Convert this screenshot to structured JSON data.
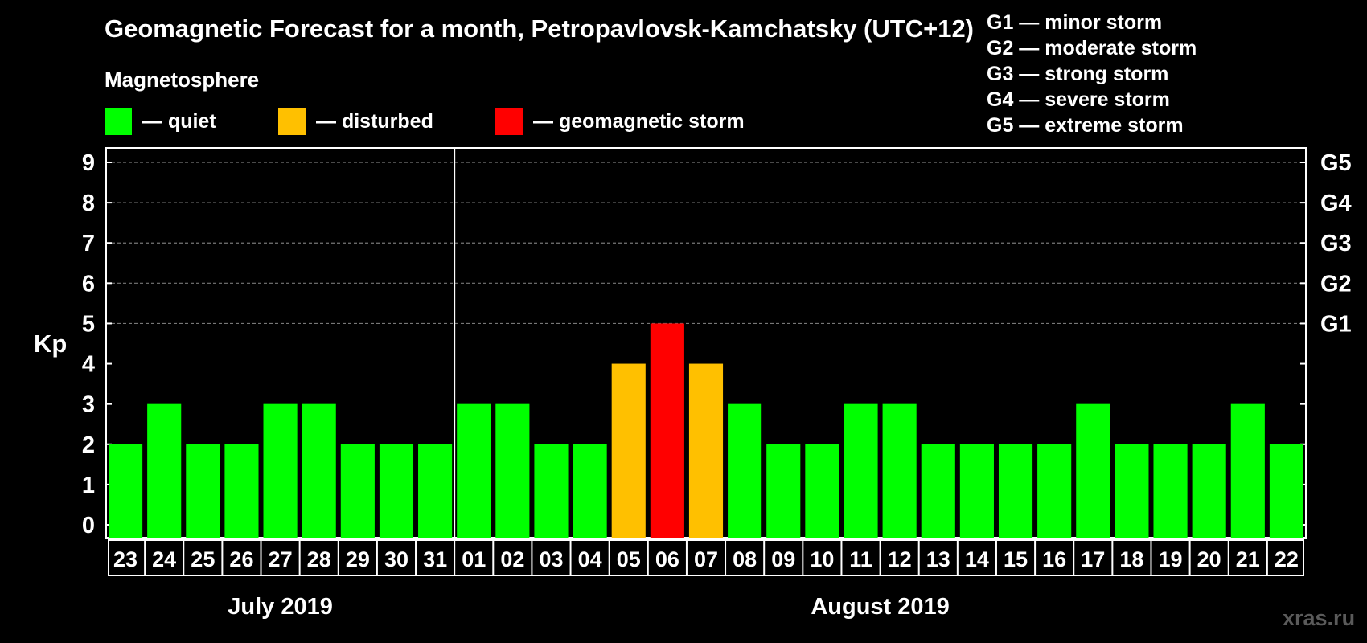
{
  "title": "Geomagnetic Forecast for a month, Petropavlovsk-Kamchatsky (UTC+12)",
  "legend": {
    "heading": "Magnetosphere",
    "items": [
      {
        "label": "— quiet",
        "color": "#00ff00"
      },
      {
        "label": "— disturbed",
        "color": "#ffc000"
      },
      {
        "label": "— geomagnetic storm",
        "color": "#ff0000"
      }
    ]
  },
  "storm_legend": [
    "G1 — minor storm",
    "G2 — moderate storm",
    "G3 — strong storm",
    "G4 — severe storm",
    "G5 — extreme storm"
  ],
  "watermark": "xras.ru",
  "chart_data": {
    "type": "bar",
    "ylabel": "Kp",
    "ylim": [
      0,
      9
    ],
    "yticks": [
      "0",
      "1",
      "2",
      "3",
      "4",
      "5",
      "6",
      "7",
      "8",
      "9"
    ],
    "right_ticks": [
      {
        "value": 5,
        "label": "G1"
      },
      {
        "value": 6,
        "label": "G2"
      },
      {
        "value": 7,
        "label": "G3"
      },
      {
        "value": 8,
        "label": "G4"
      },
      {
        "value": 9,
        "label": "G5"
      }
    ],
    "grid": "horizontal dashed at 5–9",
    "categories": [
      "23",
      "24",
      "25",
      "26",
      "27",
      "28",
      "29",
      "30",
      "31",
      "01",
      "02",
      "03",
      "04",
      "05",
      "06",
      "07",
      "08",
      "09",
      "10",
      "11",
      "12",
      "13",
      "14",
      "15",
      "16",
      "17",
      "18",
      "19",
      "20",
      "21",
      "22"
    ],
    "values": [
      2,
      3,
      2,
      2,
      3,
      3,
      2,
      2,
      2,
      3,
      3,
      2,
      2,
      4,
      5,
      4,
      3,
      2,
      2,
      3,
      3,
      2,
      2,
      2,
      2,
      3,
      2,
      2,
      2,
      3,
      2
    ],
    "months": [
      {
        "label": "July 2019",
        "days": 9
      },
      {
        "label": "August 2019",
        "days": 22
      }
    ]
  }
}
